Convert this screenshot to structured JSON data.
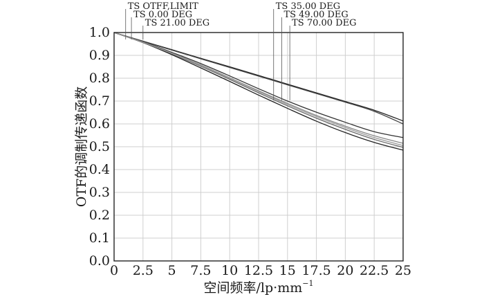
{
  "chart_data": {
    "type": "line",
    "xlabel": "空间频率/lp·mm",
    "xlabel_sup": "−1",
    "ylabel": "OTF的调制传递函数",
    "xlim": [
      0,
      25
    ],
    "ylim": [
      0,
      1.0
    ],
    "x_ticks": [
      0,
      2.5,
      5,
      7.5,
      10,
      12.5,
      15,
      17.5,
      20,
      22.5,
      25
    ],
    "x_tick_labels": [
      "0",
      "2.5",
      "5",
      "7.5",
      "10",
      "12.5",
      "15",
      "17.5",
      "20",
      "22.5",
      "25"
    ],
    "y_ticks": [
      0,
      0.1,
      0.2,
      0.3,
      0.4,
      0.5,
      0.6,
      0.7,
      0.8,
      0.9,
      1.0
    ],
    "y_tick_labels": [
      "0.0",
      "0.1",
      "0.2",
      "0.3",
      "0.4",
      "0.5",
      "0.6",
      "0.7",
      "0.8",
      "0.9",
      "1.0"
    ],
    "grid": true,
    "x": [
      0,
      2.5,
      5,
      7.5,
      10,
      12.5,
      15,
      17.5,
      20,
      22.5,
      25
    ],
    "legend": [
      {
        "label": "TS OTFF,LIMIT",
        "x_anchor": 1.0
      },
      {
        "label": "TS 0.00 DEG",
        "x_anchor": 1.5
      },
      {
        "label": "TS 21.00 DEG",
        "x_anchor": 2.5
      },
      {
        "label": "TS 35.00 DEG",
        "x_anchor": 13.8
      },
      {
        "label": "TS 49.00 DEG",
        "x_anchor": 14.5
      },
      {
        "label": "TS 70.00 DEG",
        "x_anchor": 15.2
      }
    ],
    "series": [
      {
        "values": [
          1.0,
          0.962,
          0.925,
          0.887,
          0.85,
          0.812,
          0.774,
          0.736,
          0.698,
          0.66,
          0.613
        ],
        "color": "#222222"
      },
      {
        "values": [
          1.0,
          0.961,
          0.923,
          0.885,
          0.847,
          0.809,
          0.771,
          0.733,
          0.695,
          0.655,
          0.6
        ],
        "color": "#444444"
      },
      {
        "values": [
          1.0,
          0.959,
          0.913,
          0.864,
          0.81,
          0.754,
          0.7,
          0.651,
          0.607,
          0.566,
          0.54
        ],
        "color": "#333333"
      },
      {
        "values": [
          1.0,
          0.958,
          0.91,
          0.858,
          0.802,
          0.745,
          0.69,
          0.637,
          0.59,
          0.548,
          0.515
        ],
        "color": "#888888"
      },
      {
        "values": [
          1.0,
          0.957,
          0.906,
          0.852,
          0.795,
          0.736,
          0.679,
          0.625,
          0.576,
          0.532,
          0.497
        ],
        "color": "#666666"
      },
      {
        "values": [
          1.0,
          0.956,
          0.903,
          0.845,
          0.786,
          0.726,
          0.668,
          0.612,
          0.562,
          0.519,
          0.485
        ],
        "color": "#222222"
      },
      {
        "values": [
          1.0,
          0.957,
          0.908,
          0.855,
          0.8,
          0.742,
          0.685,
          0.632,
          0.584,
          0.54,
          0.505
        ],
        "color": "#999999"
      }
    ]
  }
}
